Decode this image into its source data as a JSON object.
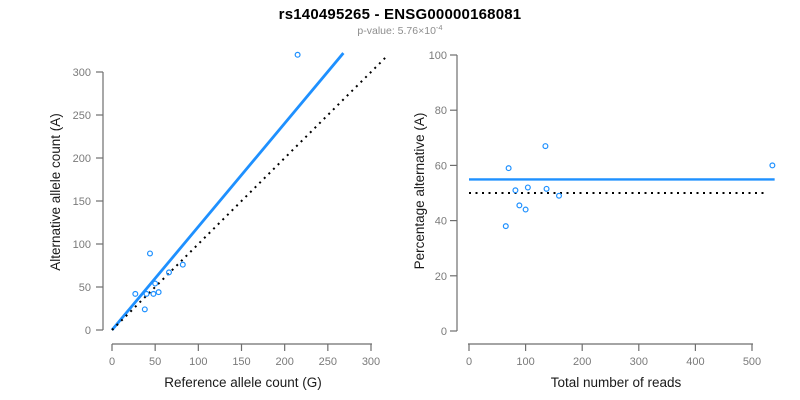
{
  "header": {
    "title": "rs140495265 - ENSG00000168081",
    "pvalue_base": "p-value: 5.76×10",
    "pvalue_exponent": "-4"
  },
  "colors": {
    "accent_blue": "#1E90FF",
    "reference_line_black": "#000000",
    "axis_gray": "#6e6e6e",
    "tick_label_gray": "#7a7a7a",
    "axis_title_color": "#1a1a1a",
    "subtitle_gray": "#8d8d8d"
  },
  "chart_data": [
    {
      "type": "scatter",
      "name": "allele-count-scatter",
      "xlabel": "Reference allele count (G)",
      "ylabel": "Alternative allele count (A)",
      "xlim": [
        0,
        320
      ],
      "ylim": [
        0,
        330
      ],
      "xticks": [
        0,
        50,
        100,
        150,
        200,
        250,
        300
      ],
      "yticks": [
        0,
        50,
        100,
        150,
        200,
        250,
        300
      ],
      "grid": false,
      "legend": "none",
      "points": [
        [
          27,
          42
        ],
        [
          38,
          24
        ],
        [
          40,
          42
        ],
        [
          44,
          89
        ],
        [
          48,
          42
        ],
        [
          50,
          54
        ],
        [
          54,
          44
        ],
        [
          66,
          67
        ],
        [
          82,
          76
        ],
        [
          215,
          320
        ]
      ],
      "lines": [
        {
          "name": "fit-line",
          "style": "solid",
          "color": "#1E90FF",
          "width": 2.8,
          "from": [
            0,
            0
          ],
          "to": [
            268,
            322
          ]
        },
        {
          "name": "identity-line",
          "style": "dotted",
          "color": "#000000",
          "width": 2,
          "from": [
            0,
            0
          ],
          "to": [
            318,
            318
          ]
        }
      ]
    },
    {
      "type": "scatter",
      "name": "percentage-vs-reads-scatter",
      "xlabel": "Total number of reads",
      "ylabel": "Percentage alternative (A)",
      "xlim": [
        0,
        540
      ],
      "ylim": [
        0,
        100
      ],
      "xticks": [
        0,
        100,
        200,
        300,
        400,
        500
      ],
      "yticks": [
        0,
        20,
        40,
        60,
        80,
        100
      ],
      "grid": false,
      "legend": "none",
      "points": [
        [
          65,
          38
        ],
        [
          70,
          59
        ],
        [
          82,
          51
        ],
        [
          89,
          45.5
        ],
        [
          100,
          44
        ],
        [
          104,
          52
        ],
        [
          135,
          67
        ],
        [
          137,
          51.5
        ],
        [
          159,
          49
        ],
        [
          536,
          60
        ]
      ],
      "lines": [
        {
          "name": "mean-percentage-line",
          "style": "solid",
          "color": "#1E90FF",
          "width": 2.4,
          "from": [
            0,
            54.9
          ],
          "to": [
            540,
            54.9
          ]
        },
        {
          "name": "expected-50-line",
          "style": "dotted",
          "color": "#000000",
          "width": 2,
          "from": [
            0,
            50
          ],
          "to": [
            526,
            50
          ]
        }
      ]
    }
  ]
}
